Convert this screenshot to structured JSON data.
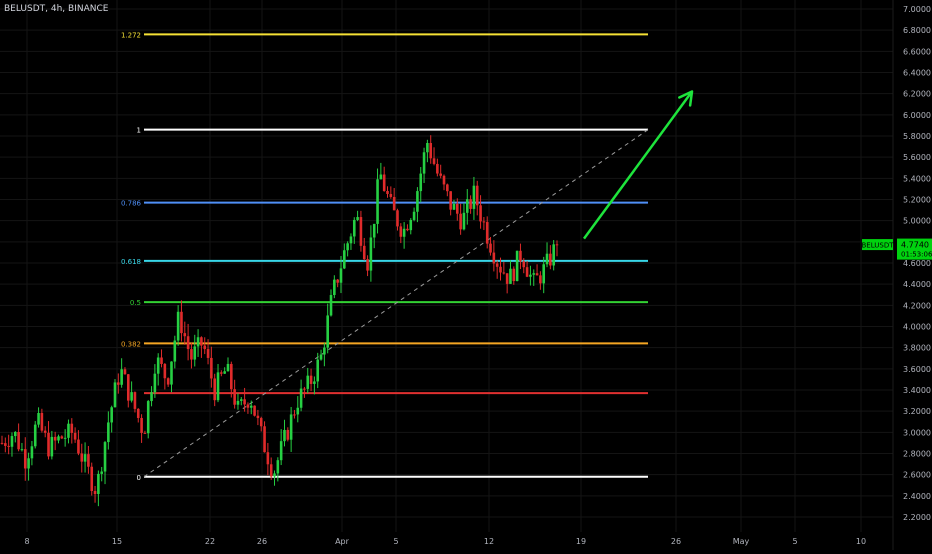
{
  "header": {
    "symbol_line": "BELUSDT, 4h, BINANCE"
  },
  "price_tag": {
    "symbol": "BELUSDT",
    "price": "4.7740",
    "countdown": "01:53:06"
  },
  "colors": {
    "background": "#000000",
    "up_candle": "#26d043",
    "down_candle": "#e02b2b",
    "axis_text": "#b2b5be",
    "trend_arrow": "#1ee43c",
    "price_tag": "#00d20f"
  },
  "chart_data": {
    "type": "candlestick",
    "title": "BELUSDT, 4h, BINANCE",
    "y_axis": {
      "min": 2.2,
      "max": 7.0,
      "ticks": [
        "2.2000",
        "2.4000",
        "2.6000",
        "2.8000",
        "3.0000",
        "3.2000",
        "3.4000",
        "3.6000",
        "3.8000",
        "4.0000",
        "4.2000",
        "4.4000",
        "4.6000",
        "4.8000",
        "5.0000",
        "5.2000",
        "5.4000",
        "5.6000",
        "5.8000",
        "6.0000",
        "6.2000",
        "6.4000",
        "6.6000",
        "6.8000",
        "7.0000"
      ]
    },
    "x_axis": {
      "ticks": [
        "8",
        "15",
        "22",
        "26",
        "Apr",
        "5",
        "12",
        "19",
        "26",
        "May",
        "5",
        "10"
      ]
    },
    "fib_levels": [
      {
        "label": "1.272",
        "price": 6.76,
        "color": "#f5e135"
      },
      {
        "label": "1",
        "price": 5.86,
        "color": "#ffffff"
      },
      {
        "label": "0.786",
        "price": 5.17,
        "color": "#4f8ff7"
      },
      {
        "label": "0.618",
        "price": 4.62,
        "color": "#38d6e8"
      },
      {
        "label": "0.5",
        "price": 4.23,
        "color": "#33d133"
      },
      {
        "label": "0.382",
        "price": 3.84,
        "color": "#f5a623"
      },
      {
        "label": "",
        "price": 3.37,
        "color": "#e03030"
      },
      {
        "label": "0",
        "price": 2.58,
        "color": "#ffffff"
      }
    ],
    "trendline": {
      "from_price": 2.58,
      "to_price": 5.86,
      "style": "dashed"
    },
    "projection_arrow": {
      "from_price": 4.83,
      "to_price": 6.22
    },
    "last_price": 4.774,
    "anchor_prices": [
      2.9,
      3.0,
      2.75,
      3.1,
      2.85,
      2.95,
      3.0,
      2.7,
      2.45,
      3.1,
      3.6,
      3.3,
      3.0,
      3.7,
      3.5,
      4.1,
      3.7,
      3.85,
      3.4,
      3.6,
      3.2,
      3.35,
      2.95,
      2.62,
      2.95,
      3.3,
      3.45,
      3.7,
      4.3,
      4.7,
      5.05,
      4.6,
      5.45,
      5.1,
      4.9,
      5.2,
      5.75,
      5.4,
      5.15,
      5.0,
      5.25,
      4.9,
      4.6,
      4.45,
      4.7,
      4.4,
      4.55,
      4.774
    ]
  }
}
